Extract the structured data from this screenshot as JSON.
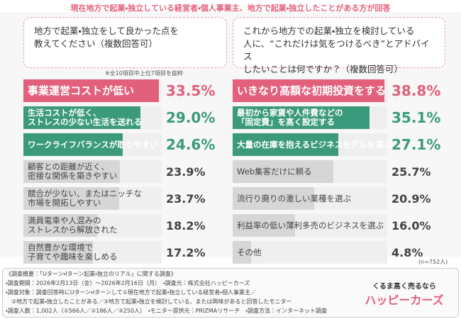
{
  "header": {
    "title": "現在地方で起業・独立している経営者・個人事業主、地方で起業・独立したことがある方が回答"
  },
  "chart_data": [
    {
      "type": "bar",
      "question": "地方で起業・独立をして良かった点を\n教えてください（複数回答可）",
      "note": "※全10項目中上位7項目を抜粋",
      "categories": [
        "事業運営コストが低い",
        "生活コストが低く、\nストレスの少ない生活を送れる",
        "ワークライフバランスが取りやすい",
        "顧客との距離が近く、\n密接な関係を築きやすい",
        "競合が少ない、またはニッチな\n市場を開拓しやすい",
        "満員電車や人混みの\nストレスから解放された",
        "自然豊かな環境で\n子育てや趣味を楽しめる"
      ],
      "values": [
        33.5,
        29.0,
        24.6,
        23.9,
        23.7,
        18.2,
        17.2
      ],
      "value_labels": [
        "33.5%",
        "29.0%",
        "24.6%",
        "23.9%",
        "23.7%",
        "18.2%",
        "17.2%"
      ],
      "colors": [
        "#e2607b",
        "#3c9a7c",
        "#3c9a7c",
        "#d6d6d6",
        "#d6d6d6",
        "#d6d6d6",
        "#d6d6d6"
      ]
    },
    {
      "type": "bar",
      "question": "これから地方での起業・独立を検討している\n人に、“これだけは気をつけるべき”とアドバイス\nしたいことは何ですか？（複数回答可）",
      "categories": [
        "いきなり高額な初期投資をする",
        "最初から家賃や人件費などの\n「固定費」を高く設定する",
        "大量の在庫を抱えるビジネスモデルを選ぶ",
        "Web集客だけに頼る",
        "流行り廃りの激しい業種を選ぶ",
        "利益率の低い薄利多売のビジネスを選ぶ",
        "その他"
      ],
      "values": [
        38.8,
        35.1,
        27.1,
        25.7,
        20.9,
        16.0,
        4.8
      ],
      "value_labels": [
        "38.8%",
        "35.1%",
        "27.1%",
        "25.7%",
        "20.9%",
        "16.0%",
        "4.8%"
      ],
      "colors": [
        "#e2607b",
        "#3c9a7c",
        "#3c9a7c",
        "#d6d6d6",
        "#d6d6d6",
        "#d6d6d6",
        "#d6d6d6"
      ]
    }
  ],
  "sample_size": "(n=752人)",
  "footer": {
    "lines": [
      "《調査概要：「Uターン・Iターン起業・独立のリアル」に関する調査》",
      "・調査期間：2026年2月13日（金）〜2026年2月16日（月）　・調査元：株式会社ハッピーカーズ",
      "・調査対象：調査回答時にUターン・Iターンして①現在地方で起業・独立している経営者・個人事業主／",
      "　②地方で起業・独立したことがある／③地方で起業・独立を検討している、または興味があると回答したモニター",
      "・調査人数：1,002人（①566人／②186人／③250人）　・モニター提供元：PRIZMAリサーチ　・調査方法：インターネット調査"
    ],
    "logo": {
      "tagline": "くるま高く売るなら",
      "name": "ハッピーカーズ"
    }
  }
}
